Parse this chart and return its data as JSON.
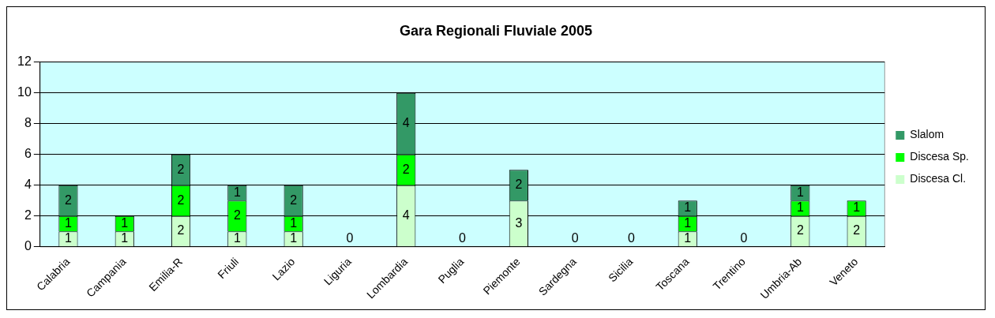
{
  "chart_data": {
    "type": "bar",
    "title": "Gara Regionali Fluviale 2005",
    "categories": [
      "Calabria",
      "Campania",
      "Emilia-R",
      "Friuli",
      "Lazio",
      "Liguria",
      "Lombardia",
      "Puglia",
      "Piemonte",
      "Sardegna",
      "Sicilia",
      "Toscana",
      "Trentino",
      "Umbria-Ab",
      "Veneto"
    ],
    "stacked": true,
    "ylim": [
      0,
      12
    ],
    "yticks": [
      0,
      2,
      4,
      6,
      8,
      10,
      12
    ],
    "grid": "y",
    "legend": "right",
    "series": [
      {
        "name": "Discesa Cl.",
        "color": "#ccffcc",
        "values": [
          1,
          1,
          2,
          1,
          1,
          0,
          4,
          0,
          3,
          0,
          0,
          1,
          0,
          2,
          2
        ],
        "value_labels": [
          "1",
          "1",
          "2",
          "1",
          "1",
          "0",
          "4",
          "0",
          "3",
          "0",
          "0",
          "1",
          "0",
          "2",
          "2"
        ]
      },
      {
        "name": "Discesa Sp.",
        "color": "#00ff00",
        "values": [
          1,
          1,
          2,
          2,
          1,
          0,
          2,
          0,
          0,
          0,
          0,
          1,
          0,
          1,
          1
        ],
        "value_labels": [
          "1",
          "1",
          "2",
          "2",
          "1",
          null,
          "2",
          null,
          null,
          null,
          null,
          "1",
          null,
          "1",
          "1"
        ]
      },
      {
        "name": "Slalom",
        "color": "#339966",
        "values": [
          2,
          0,
          2,
          1,
          2,
          0,
          4,
          0,
          2,
          0,
          0,
          1,
          0,
          1,
          0
        ],
        "value_labels": [
          "2",
          null,
          "2",
          "1",
          "2",
          null,
          "4",
          null,
          "2",
          null,
          null,
          "1",
          null,
          "1",
          null
        ]
      }
    ]
  }
}
